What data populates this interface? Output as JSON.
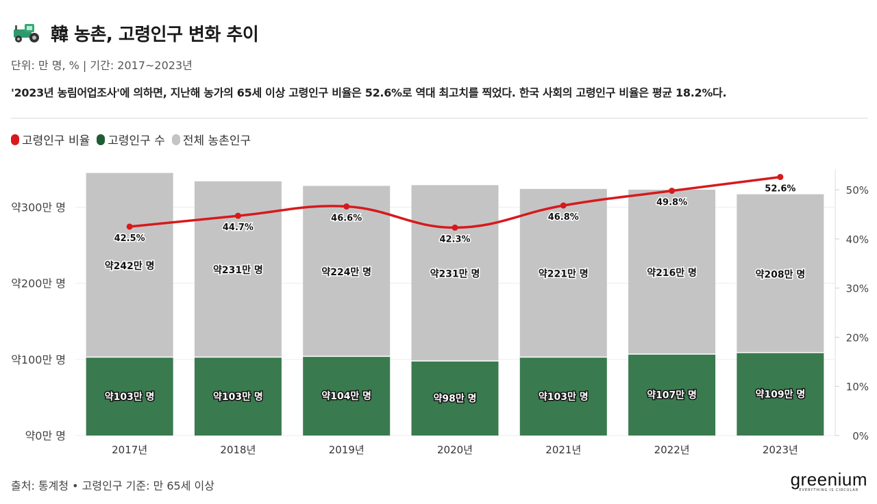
{
  "header": {
    "icon": "tractor-icon",
    "title": "韓 농촌, 고령인구 변화 추이",
    "subtitle": "단위: 만 명, % | 기간: 2017~2023년",
    "description": "'2023년 농림어업조사'에 의하면, 지난해 농가의 65세 이상 고령인구 비율은 52.6%로 역대 최고치를 찍었다. 한국 사회의 고령인구 비율은 평균 18.2%다."
  },
  "legend": [
    {
      "label": "고령인구 비율",
      "color": "#d7191c"
    },
    {
      "label": "고령인구 수",
      "color": "#1f5e34"
    },
    {
      "label": "전체 농촌인구",
      "color": "#c4c4c4"
    }
  ],
  "chart_data": {
    "type": "bar",
    "stacked": true,
    "categories": [
      "2017년",
      "2018년",
      "2019년",
      "2020년",
      "2021년",
      "2022년",
      "2023년"
    ],
    "series": [
      {
        "name": "고령인구 수",
        "type": "bar",
        "color": "#3a7a4f",
        "values": [
          103,
          103,
          104,
          98,
          103,
          107,
          109
        ],
        "labels": [
          "약103만 명",
          "약103만 명",
          "약104만 명",
          "약98만 명",
          "약103만 명",
          "약107만 명",
          "약109만 명"
        ]
      },
      {
        "name": "전체 농촌인구",
        "type": "bar",
        "color": "#c4c4c4",
        "values": [
          242,
          231,
          224,
          231,
          221,
          216,
          208
        ],
        "labels": [
          "약242만 명",
          "약231만 명",
          "약224만 명",
          "약231만 명",
          "약221만 명",
          "약216만 명",
          "약208만 명"
        ]
      },
      {
        "name": "고령인구 비율",
        "type": "line",
        "axis": "right",
        "color": "#d7191c",
        "values": [
          42.5,
          44.7,
          46.6,
          42.3,
          46.8,
          49.8,
          52.6
        ],
        "labels": [
          "42.5%",
          "44.7%",
          "46.6%",
          "42.3%",
          "46.8%",
          "49.8%",
          "52.6%"
        ]
      }
    ],
    "y_left": {
      "ylim": [
        0,
        350
      ],
      "ticks": [
        0,
        100,
        200,
        300
      ],
      "tick_labels": [
        "약0만 명",
        "약100만 명",
        "약200만 명",
        "약300만 명"
      ]
    },
    "y_right": {
      "ylim": [
        0,
        54.2
      ],
      "ticks": [
        0,
        10,
        20,
        30,
        40,
        50
      ],
      "tick_labels": [
        "0%",
        "10%",
        "20%",
        "30%",
        "40%",
        "50%"
      ]
    },
    "grid": true,
    "legend_position": "top-left"
  },
  "footer": {
    "source": "출처: 통계청 • 고령인구 기준: 만 65세 이상",
    "logo": "greenium",
    "logo_tagline": "EVERYTHING IS CIRCULAR"
  }
}
